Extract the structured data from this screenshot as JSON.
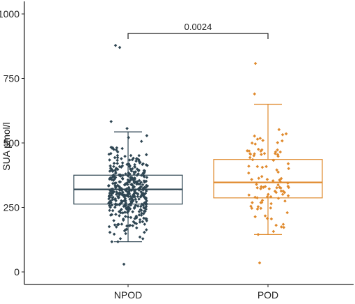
{
  "chart_data": {
    "type": "box",
    "title": "",
    "xlabel": "",
    "ylabel": "SUA µmol/l",
    "ylim": [
      0,
      1000
    ],
    "yticks": [
      0,
      250,
      500,
      750,
      1000
    ],
    "categories": [
      "NPOD",
      "POD"
    ],
    "colors": {
      "NPOD": "#2f4653",
      "POD": "#e08a2d"
    },
    "grid": false,
    "legend": "none",
    "boxes": [
      {
        "name": "NPOD",
        "q1": 263,
        "median": 320,
        "q3": 375,
        "whisker_low": 117,
        "whisker_high": 543
      },
      {
        "name": "POD",
        "q1": 287,
        "median": 347,
        "q3": 436,
        "whisker_low": 145,
        "whisker_high": 650
      }
    ],
    "outliers": {
      "NPOD": [
        878,
        870,
        30
      ],
      "POD": [
        808,
        35
      ]
    },
    "jitter_points": {
      "NPOD_n_approx": 420,
      "POD_n_approx": 100
    },
    "annotation": {
      "text": "0.0024",
      "between": [
        "NPOD",
        "POD"
      ]
    }
  }
}
